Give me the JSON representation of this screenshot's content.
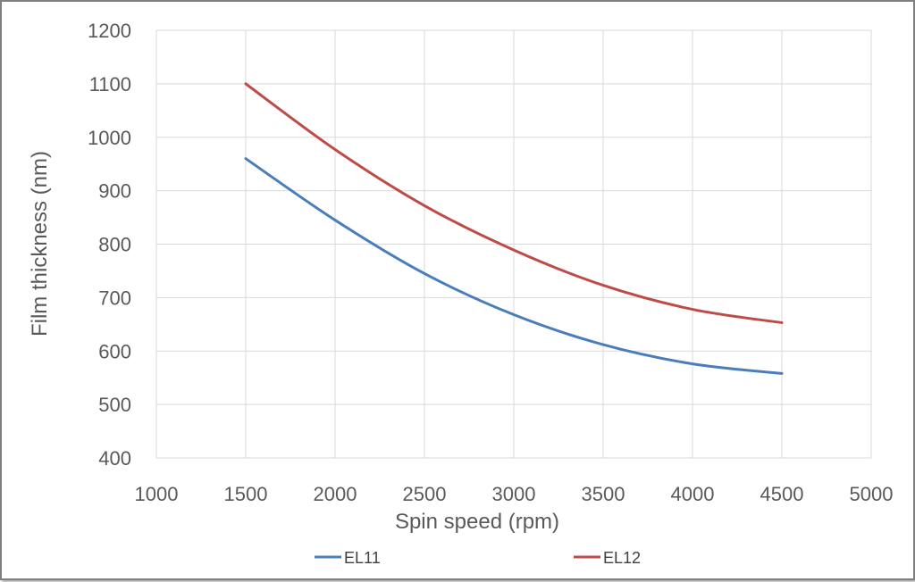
{
  "chart_data": {
    "type": "line",
    "title": "",
    "xlabel": "Spin speed (rpm)",
    "ylabel": "Film thickness (nm)",
    "xlim": [
      1000,
      5000
    ],
    "ylim": [
      400,
      1200
    ],
    "xticks": [
      1000,
      1500,
      2000,
      2500,
      3000,
      3500,
      4000,
      4500,
      5000
    ],
    "yticks": [
      400,
      500,
      600,
      700,
      800,
      900,
      1000,
      1100,
      1200
    ],
    "grid": true,
    "legend_position": "bottom",
    "x": [
      1500,
      2000,
      2500,
      3000,
      3500,
      4000,
      4500
    ],
    "series": [
      {
        "name": "EL11",
        "color": "#4a7ebb",
        "values": [
          960,
          845,
          745,
          668,
          612,
          576,
          558
        ]
      },
      {
        "name": "EL12",
        "color": "#be4b48",
        "values": [
          1100,
          977,
          872,
          789,
          723,
          678,
          653
        ]
      }
    ]
  }
}
